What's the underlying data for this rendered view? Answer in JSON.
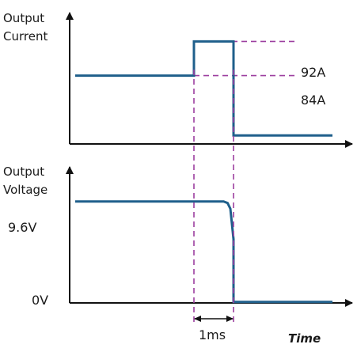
{
  "chart_data": [
    {
      "type": "line",
      "ylabel_lines": [
        "Output",
        "Current"
      ],
      "series": [
        {
          "x": [
            0,
            3,
            3,
            4,
            4,
            6.5
          ],
          "y": [
            84,
            84,
            92,
            92,
            70,
            70
          ]
        }
      ],
      "reference_lines": [
        {
          "label": "92A",
          "value": 92
        },
        {
          "label": "84A",
          "value": 84
        }
      ],
      "ylim": [
        68,
        98
      ],
      "xlim": [
        -0.1,
        7.0
      ],
      "colors": {
        "trace": "#1f5f8b",
        "reference": "#9c3fa0",
        "axis": "#111111"
      }
    },
    {
      "type": "line",
      "ylabel_lines": [
        "Output",
        "Voltage"
      ],
      "series": [
        {
          "x": [
            0,
            3.75,
            3.85,
            3.92,
            4.0,
            4.0,
            6.5
          ],
          "y": [
            9.6,
            9.6,
            9.45,
            8.9,
            6.0,
            0,
            0
          ]
        }
      ],
      "yticks": [
        {
          "label": "9.6V",
          "value": 9.6
        },
        {
          "label": "0V",
          "value": 0
        }
      ],
      "ylim": [
        -0.1,
        12.6
      ],
      "xlim": [
        -0.1,
        7.0
      ],
      "annotations": [
        {
          "label": "1ms",
          "from": 3,
          "to": 4
        }
      ],
      "xlabel": "Time",
      "colors": {
        "trace": "#1f5f8b",
        "reference": "#9c3fa0",
        "axis": "#111111"
      }
    }
  ]
}
